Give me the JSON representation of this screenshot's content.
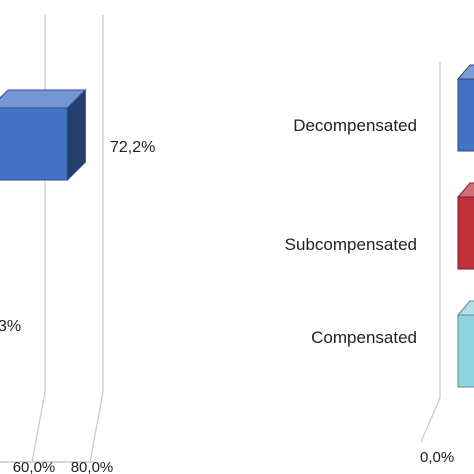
{
  "chart_data": [
    {
      "type": "bar",
      "orientation": "horizontal",
      "style": "3d",
      "grid": true,
      "categories": [
        "",
        ""
      ],
      "values": [
        72.2,
        null
      ],
      "data_labels": [
        "72,2%",
        "3%"
      ],
      "x_tick_labels": [
        "60,0%",
        "80,0%"
      ],
      "xlim": [
        0,
        80
      ],
      "bar_color": "#4472C4"
    },
    {
      "type": "bar",
      "orientation": "horizontal",
      "style": "3d",
      "categories": [
        "Decompensated",
        "Subcompensated",
        "Compensated"
      ],
      "x_tick_labels": [
        "0,0%"
      ],
      "bar_colors": [
        "#4472C4",
        "#C0313B",
        "#8ED3E0"
      ]
    }
  ]
}
